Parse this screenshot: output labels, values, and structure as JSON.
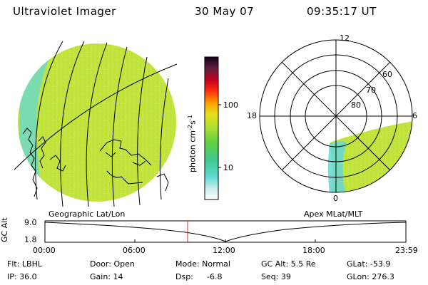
{
  "header": {
    "instrument": "Ultraviolet Imager",
    "date": "30 May 07",
    "time": "09:35:17 UT"
  },
  "colorbar": {
    "label_main": "photon cm",
    "label_exp1": "-2",
    "label_mid": "s",
    "label_exp2": "-1",
    "tick_100": "100",
    "tick_10": "10"
  },
  "polar": {
    "mlt_labels": {
      "top": "12",
      "left": "18",
      "right": "6",
      "bottom": "0"
    },
    "lat_labels": [
      "60",
      "70",
      "80"
    ]
  },
  "geo_panel_label": "Geographic Lat/Lon",
  "apex_panel_label": "Apex MLat/MLT",
  "alt_plot": {
    "ylabel": "GC Alt",
    "y_top": "9.0",
    "y_bottom": "1.8",
    "x_ticks": [
      "00:00",
      "06:00",
      "12:00",
      "18:00",
      "23:59"
    ]
  },
  "info": {
    "flt": "Flt: LBHL",
    "door": "Door: Open",
    "mode": "Mode: Normal",
    "gcalt": "GC Alt: 5.5 Re",
    "glat": "GLat: -53.9",
    "ip": "IP: 36.0",
    "gain": "Gain: 14",
    "dsp_label": "Dsp:",
    "dsp_value": "-6.8",
    "seq": "Seq: 39",
    "glon": "GLon: 276.3"
  },
  "colors": {
    "green": "#b8e63c",
    "yellow_green": "#d0ea3a",
    "cyan": "#63d8d8",
    "current_time_marker": "#cc3333"
  }
}
